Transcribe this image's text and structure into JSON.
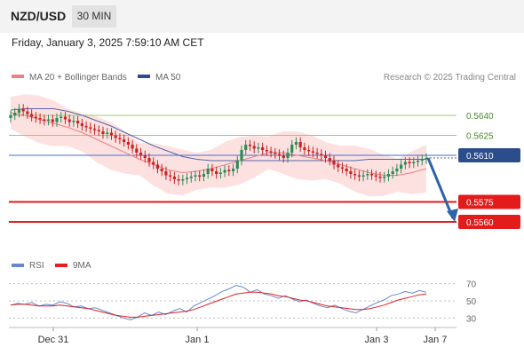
{
  "header": {
    "pair": "NZD/USD",
    "timeframe": "30 MIN",
    "datetime": "Friday, January 3, 2025 7:59:10 AM CET"
  },
  "legend": {
    "ma20_bb": "MA 20 + Bollinger Bands",
    "ma50": "MA 50",
    "credit": "Research © 2025 Trading Central"
  },
  "rsi_legend": {
    "rsi": "RSI",
    "ma9": "9MA"
  },
  "colors": {
    "candle_up": "#2e8b57",
    "candle_down": "#cc2222",
    "ma20": "#f08080",
    "ma50": "#5566aa",
    "bollinger_fill": "#fde1e1",
    "level_green": "#9ccc6a",
    "level_blue": "#3d6fd6",
    "level_red": "#e41b1b",
    "arrow": "#2f62a8",
    "rsi_line": "#6688cc",
    "rsi_ma": "#dd2222"
  },
  "chart_data": [
    {
      "type": "candlestick",
      "title": "NZD/USD 30 MIN",
      "ylim": [
        0.554,
        0.566
      ],
      "x_tick_labels": [
        "Dec 31",
        "Jan 1",
        "Jan 3",
        "Jan 7"
      ],
      "levels": [
        {
          "value": 0.564,
          "label": "0.5640",
          "kind": "resistance"
        },
        {
          "value": 0.5625,
          "label": "0.5625",
          "kind": "resistance"
        },
        {
          "value": 0.561,
          "label": "0.5610",
          "kind": "pivot"
        },
        {
          "value": 0.5575,
          "label": "0.5575",
          "kind": "target"
        },
        {
          "value": 0.556,
          "label": "0.5560",
          "kind": "target"
        }
      ],
      "close_series": [
        0.564,
        0.5642,
        0.5645,
        0.5643,
        0.5641,
        0.5639,
        0.5638,
        0.5637,
        0.5636,
        0.5637,
        0.5635,
        0.5638,
        0.5639,
        0.5637,
        0.5635,
        0.5636,
        0.5634,
        0.5632,
        0.5631,
        0.563,
        0.5629,
        0.5628,
        0.5626,
        0.5627,
        0.5625,
        0.5623,
        0.5622,
        0.562,
        0.5618,
        0.5615,
        0.5612,
        0.561,
        0.5608,
        0.5605,
        0.5603,
        0.56,
        0.5598,
        0.5595,
        0.5594,
        0.5592,
        0.5591,
        0.5592,
        0.5593,
        0.5594,
        0.5595,
        0.5594,
        0.5596,
        0.56,
        0.5598,
        0.5596,
        0.5597,
        0.5599,
        0.5598,
        0.56,
        0.5606,
        0.5614,
        0.5618,
        0.5617,
        0.5615,
        0.5616,
        0.5614,
        0.5613,
        0.5612,
        0.5611,
        0.561,
        0.5608,
        0.5612,
        0.5618,
        0.562,
        0.5616,
        0.5614,
        0.5613,
        0.5612,
        0.5611,
        0.561,
        0.5608,
        0.5606,
        0.5603,
        0.5601,
        0.56,
        0.5598,
        0.5596,
        0.5595,
        0.5594,
        0.5595,
        0.5596,
        0.5595,
        0.5594,
        0.5593,
        0.5594,
        0.5596,
        0.5598,
        0.56,
        0.5603,
        0.5605,
        0.5604,
        0.5605,
        0.5606,
        0.5607,
        0.5608
      ],
      "ma20_series": [
        0.5642,
        0.564,
        0.5637,
        0.5634,
        0.5631,
        0.5627,
        0.5622,
        0.5617,
        0.5612,
        0.5607,
        0.5603,
        0.5599,
        0.5597,
        0.5598,
        0.56,
        0.5603,
        0.5606,
        0.5609,
        0.5612,
        0.5612,
        0.561,
        0.5608,
        0.5606,
        0.5603,
        0.56,
        0.5597,
        0.5595,
        0.5595,
        0.5597,
        0.56
      ],
      "ma50_series": [
        0.5644,
        0.5645,
        0.5645,
        0.5645,
        0.5643,
        0.564,
        0.5636,
        0.5632,
        0.5627,
        0.5622,
        0.5617,
        0.5613,
        0.5609,
        0.5607,
        0.5606,
        0.5606,
        0.5606,
        0.5606,
        0.5606,
        0.5606,
        0.5606,
        0.5606,
        0.5606,
        0.5606,
        0.5606,
        0.5607,
        0.5607,
        0.5607,
        0.5607,
        0.5607
      ],
      "projection": {
        "from": 0.5608,
        "to": 0.556
      }
    },
    {
      "type": "line",
      "title": "RSI",
      "ylim": [
        20,
        80
      ],
      "y_ticks": [
        70,
        50,
        30
      ],
      "series": [
        {
          "name": "RSI",
          "values": [
            45,
            47,
            46,
            48,
            44,
            46,
            45,
            49,
            47,
            43,
            44,
            41,
            42,
            39,
            36,
            33,
            30,
            28,
            31,
            36,
            33,
            37,
            34,
            38,
            41,
            37,
            44,
            48,
            52,
            56,
            61,
            64,
            68,
            66,
            60,
            63,
            58,
            56,
            53,
            56,
            52,
            49,
            51,
            47,
            44,
            42,
            45,
            41,
            38,
            36,
            40,
            44,
            48,
            51,
            56,
            58,
            61,
            59,
            62,
            60
          ]
        },
        {
          "name": "9MA",
          "values": [
            45,
            46,
            46,
            45,
            44,
            44,
            44,
            45,
            44,
            43,
            42,
            41,
            39,
            37,
            35,
            33,
            32,
            31,
            31,
            32,
            33,
            34,
            35,
            36,
            37,
            38,
            40,
            43,
            46,
            49,
            52,
            55,
            58,
            59,
            60,
            60,
            59,
            58,
            56,
            55,
            53,
            51,
            50,
            48,
            46,
            44,
            43,
            42,
            41,
            40,
            40,
            41,
            43,
            45,
            48,
            51,
            53,
            55,
            57,
            58
          ]
        }
      ]
    }
  ]
}
